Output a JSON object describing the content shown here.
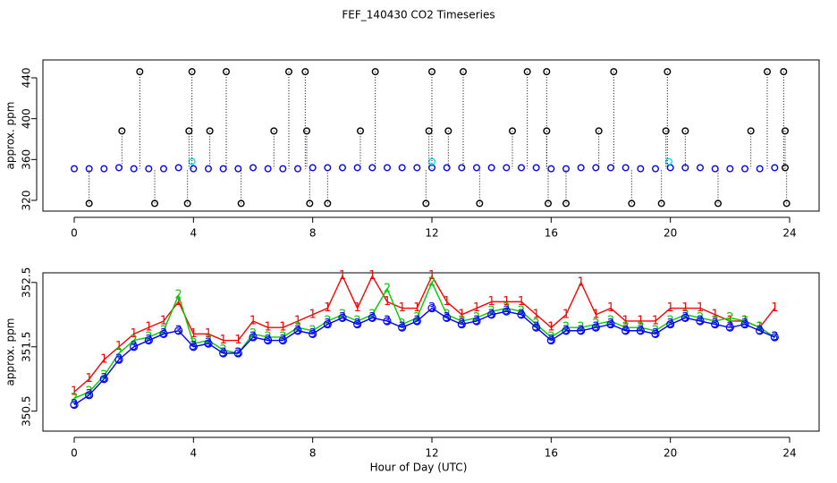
{
  "chart_data": [
    {
      "type": "scatter",
      "title": "FEF_140430  CO2 Timeseries",
      "ylabel": "approx. ppm",
      "xlim": [
        -1.05,
        24.99
      ],
      "ylim": [
        309.5,
        457.5
      ],
      "xticks": [
        0,
        4,
        8,
        12,
        16,
        20,
        24
      ],
      "yticks": [
        320,
        360,
        400,
        440
      ],
      "series": [
        {
          "color": "#0000ff",
          "drop_lines": false,
          "x": [
            0,
            0.5,
            1,
            1.5,
            2,
            2.5,
            3,
            3.5,
            4,
            4.5,
            5,
            5.5,
            6,
            6.5,
            7,
            7.5,
            8,
            8.5,
            9,
            9.5,
            10,
            10.5,
            11,
            11.5,
            12,
            12.5,
            13,
            13.5,
            14,
            14.5,
            15,
            15.5,
            16,
            16.5,
            17,
            17.5,
            18,
            18.5,
            19,
            19.5,
            20,
            20.5,
            21,
            21.5,
            22,
            22.5,
            23,
            23.5
          ],
          "values": [
            351,
            351,
            351,
            352,
            351,
            351,
            351,
            352,
            351,
            351,
            351,
            351,
            352,
            351,
            351,
            351,
            352,
            352,
            352,
            352,
            352,
            352,
            352,
            352,
            352,
            352,
            352,
            352,
            352,
            352,
            352,
            352,
            351,
            351,
            352,
            352,
            352,
            352,
            351,
            351,
            352,
            352,
            352,
            351,
            351,
            351,
            351,
            352
          ]
        },
        {
          "color": "#00e5ee",
          "drop_lines": false,
          "x": [
            3.95,
            12,
            19.95
          ],
          "values": [
            358,
            358,
            358
          ]
        },
        {
          "color": "#000000",
          "drop_lines": true,
          "x": [
            2.2,
            3.95,
            5.1,
            7.2,
            7.75,
            10.1,
            12,
            13.05,
            15.2,
            15.85,
            18.1,
            19.9,
            23.25,
            23.8,
            1.6,
            3.85,
            4.55,
            6.7,
            7.8,
            9.6,
            11.9,
            12.55,
            14.7,
            15.85,
            17.6,
            19.85,
            20.5,
            22.7,
            23.85,
            0.5,
            2.7,
            3.8,
            5.6,
            7.9,
            8.5,
            11.8,
            13.6,
            15.9,
            16.5,
            18.7,
            19.7,
            21.6,
            23.9,
            23.85
          ],
          "values": [
            446,
            446,
            446,
            446,
            446,
            446,
            446,
            446,
            446,
            446,
            446,
            446,
            446,
            446,
            388,
            388,
            388,
            388,
            388,
            388,
            388,
            388,
            388,
            388,
            388,
            388,
            388,
            388,
            388,
            317,
            317,
            317,
            317,
            317,
            317,
            317,
            317,
            317,
            317,
            317,
            317,
            317,
            317,
            352
          ]
        }
      ]
    },
    {
      "type": "line",
      "ylabel": "approx. ppm",
      "xlabel": "Hour of Day (UTC)",
      "xlim": [
        -1.05,
        24.99
      ],
      "ylim": [
        350.19,
        352.65
      ],
      "xticks": [
        0,
        4,
        8,
        12,
        16,
        20,
        24
      ],
      "yticks": [
        350.5,
        351.5,
        352.5
      ],
      "x": [
        0,
        0.5,
        1,
        1.5,
        2,
        2.5,
        3,
        3.5,
        4,
        4.5,
        5,
        5.5,
        6,
        6.5,
        7,
        7.5,
        8,
        8.5,
        9,
        9.5,
        10,
        10.5,
        11,
        11.5,
        12,
        12.5,
        13,
        13.5,
        14,
        14.5,
        15,
        15.5,
        16,
        16.5,
        17,
        17.5,
        18,
        18.5,
        19,
        19.5,
        20,
        20.5,
        21,
        21.5,
        22,
        22.5,
        23,
        23.5
      ],
      "series": [
        {
          "name": "1",
          "color": "#ff0000",
          "marker": "none",
          "values": [
            350.8,
            351.0,
            351.3,
            351.5,
            351.7,
            351.8,
            351.9,
            352.2,
            351.7,
            351.7,
            351.6,
            351.6,
            351.9,
            351.8,
            351.8,
            351.9,
            352.0,
            352.1,
            352.6,
            352.1,
            352.6,
            352.2,
            352.1,
            352.1,
            352.6,
            352.2,
            352.0,
            352.1,
            352.2,
            352.2,
            352.2,
            352.0,
            351.8,
            352.0,
            352.5,
            352.0,
            352.1,
            351.9,
            351.9,
            351.9,
            352.1,
            352.1,
            352.1,
            352.0,
            351.9,
            351.9,
            351.8,
            352.1
          ]
        },
        {
          "name": "2",
          "color": "#00cd00",
          "marker": "none",
          "values": [
            350.7,
            350.8,
            351.05,
            351.4,
            351.6,
            351.65,
            351.75,
            352.3,
            351.55,
            351.6,
            351.45,
            351.4,
            351.7,
            351.65,
            351.65,
            351.8,
            351.75,
            351.9,
            352.0,
            351.9,
            352.0,
            352.4,
            351.85,
            351.95,
            352.5,
            352.0,
            351.9,
            351.95,
            352.05,
            352.1,
            352.05,
            351.85,
            351.65,
            351.8,
            351.8,
            351.85,
            351.9,
            351.8,
            351.8,
            351.75,
            351.9,
            352.0,
            351.95,
            351.9,
            351.95,
            351.9,
            351.8,
            351.65
          ]
        },
        {
          "name": "3",
          "color": "#0000ff",
          "marker": "circle",
          "values": [
            350.6,
            350.75,
            351.0,
            351.3,
            351.5,
            351.6,
            351.7,
            351.75,
            351.5,
            351.55,
            351.4,
            351.4,
            351.65,
            351.6,
            351.6,
            351.75,
            351.7,
            351.85,
            351.95,
            351.85,
            351.95,
            351.9,
            351.8,
            351.9,
            352.1,
            351.95,
            351.85,
            351.9,
            352.0,
            352.05,
            352.0,
            351.8,
            351.6,
            351.75,
            351.75,
            351.8,
            351.85,
            351.75,
            351.75,
            351.7,
            351.85,
            351.95,
            351.9,
            351.85,
            351.8,
            351.85,
            351.75,
            351.65
          ]
        }
      ]
    }
  ]
}
